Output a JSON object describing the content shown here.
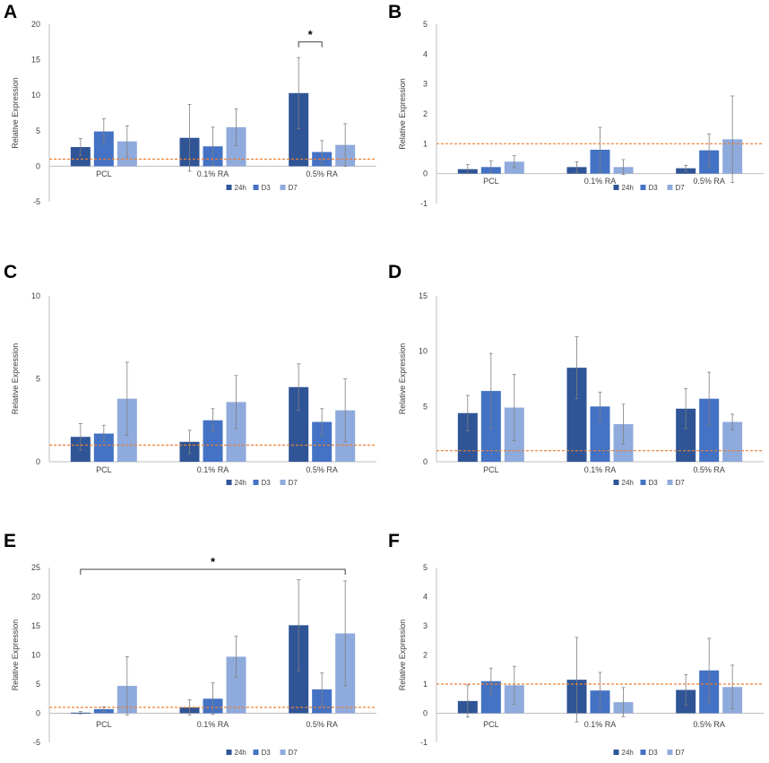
{
  "legend_labels": [
    "24h",
    "D3",
    "D7"
  ],
  "colors": {
    "series": [
      "#2F5597",
      "#4472C4",
      "#8FAADC"
    ],
    "reference_line": "#ED7D31",
    "axis": "#BFBFBF",
    "error_bar": "#7F7F7F",
    "tick_text": "#404040",
    "panel_letter": "#000000"
  },
  "chart_data": [
    {
      "panel": "A",
      "type": "bar",
      "ylabel": "Relative Expression",
      "categories": [
        "PCL",
        "0.1% RA",
        "0.5% RA"
      ],
      "ylim": [
        -5,
        20
      ],
      "yticks": [
        -5,
        0,
        5,
        10,
        15,
        20
      ],
      "reference_line": 1,
      "series": [
        {
          "name": "24h",
          "values": [
            2.7,
            4.0,
            10.3
          ],
          "errors": [
            1.2,
            4.7,
            5.0
          ]
        },
        {
          "name": "D3",
          "values": [
            4.9,
            2.8,
            2.0
          ],
          "errors": [
            1.8,
            2.7,
            1.6
          ]
        },
        {
          "name": "D7",
          "values": [
            3.5,
            5.5,
            3.0
          ],
          "errors": [
            2.2,
            2.6,
            3.0
          ]
        }
      ],
      "significance": [
        {
          "label": "*",
          "from": [
            2,
            0
          ],
          "to": [
            2,
            1
          ],
          "level": 17.5
        }
      ]
    },
    {
      "panel": "B",
      "type": "bar",
      "ylabel": "Relative Expression",
      "categories": [
        "PCL",
        "0.1% RA",
        "0.5% RA"
      ],
      "ylim": [
        -1,
        5
      ],
      "yticks": [
        -1,
        0,
        1,
        2,
        3,
        4,
        5
      ],
      "reference_line": 1,
      "series": [
        {
          "name": "24h",
          "values": [
            0.15,
            0.22,
            0.18
          ],
          "errors": [
            0.15,
            0.18,
            0.1
          ]
        },
        {
          "name": "D3",
          "values": [
            0.22,
            0.8,
            0.78
          ],
          "errors": [
            0.2,
            0.75,
            0.55
          ]
        },
        {
          "name": "D7",
          "values": [
            0.4,
            0.22,
            1.15
          ],
          "errors": [
            0.2,
            0.25,
            1.45
          ]
        }
      ],
      "significance": []
    },
    {
      "panel": "C",
      "type": "bar",
      "ylabel": "Relative Expression",
      "categories": [
        "PCL",
        "0.1% RA",
        "0.5% RA"
      ],
      "ylim": [
        0,
        10
      ],
      "yticks": [
        0,
        5,
        10
      ],
      "reference_line": 1,
      "series": [
        {
          "name": "24h",
          "values": [
            1.5,
            1.2,
            4.5
          ],
          "errors": [
            0.8,
            0.7,
            1.4
          ]
        },
        {
          "name": "D3",
          "values": [
            1.7,
            2.5,
            2.4
          ],
          "errors": [
            0.5,
            0.7,
            0.8
          ]
        },
        {
          "name": "D7",
          "values": [
            3.8,
            3.6,
            3.1
          ],
          "errors": [
            2.2,
            1.6,
            1.9
          ]
        }
      ],
      "significance": []
    },
    {
      "panel": "D",
      "type": "bar",
      "ylabel": "Relative Expression",
      "categories": [
        "PCL",
        "0.1% RA",
        "0.5% RA"
      ],
      "ylim": [
        0,
        15
      ],
      "yticks": [
        0,
        5,
        10,
        15
      ],
      "reference_line": 1,
      "series": [
        {
          "name": "24h",
          "values": [
            4.4,
            8.5,
            4.8
          ],
          "errors": [
            1.6,
            2.8,
            1.8
          ]
        },
        {
          "name": "D3",
          "values": [
            6.4,
            5.0,
            5.7
          ],
          "errors": [
            3.4,
            1.3,
            2.4
          ]
        },
        {
          "name": "D7",
          "values": [
            4.9,
            3.4,
            3.6
          ],
          "errors": [
            3.0,
            1.8,
            0.7
          ]
        }
      ],
      "significance": []
    },
    {
      "panel": "E",
      "type": "bar",
      "ylabel": "Relative Expression",
      "categories": [
        "PCL",
        "0.1% RA",
        "0.5% RA"
      ],
      "ylim": [
        -5,
        25
      ],
      "yticks": [
        -5,
        0,
        5,
        10,
        15,
        20,
        25
      ],
      "reference_line": 1,
      "series": [
        {
          "name": "24h",
          "values": [
            0.1,
            1.0,
            15.1
          ],
          "errors": [
            0.2,
            1.3,
            7.8
          ]
        },
        {
          "name": "D3",
          "values": [
            0.7,
            2.5,
            4.1
          ],
          "errors": [
            0.4,
            2.7,
            2.8
          ]
        },
        {
          "name": "D7",
          "values": [
            4.7,
            9.7,
            13.7
          ],
          "errors": [
            5.0,
            3.5,
            9.0
          ]
        }
      ],
      "significance": [
        {
          "label": "*",
          "from": [
            0,
            0
          ],
          "to": [
            2,
            2
          ],
          "level": 24.7
        }
      ]
    },
    {
      "panel": "F",
      "type": "bar",
      "ylabel": "Relative Expression",
      "categories": [
        "PCL",
        "0.1% RA",
        "0.5% RA"
      ],
      "ylim": [
        -1,
        5
      ],
      "yticks": [
        -1,
        0,
        1,
        2,
        3,
        4,
        5
      ],
      "reference_line": 1,
      "series": [
        {
          "name": "24h",
          "values": [
            0.42,
            1.15,
            0.8
          ],
          "errors": [
            0.55,
            1.45,
            0.52
          ]
        },
        {
          "name": "D3",
          "values": [
            1.1,
            0.78,
            1.47
          ],
          "errors": [
            0.45,
            0.62,
            1.1
          ]
        },
        {
          "name": "D7",
          "values": [
            0.96,
            0.38,
            0.9
          ],
          "errors": [
            0.65,
            0.5,
            0.75
          ]
        }
      ],
      "significance": []
    }
  ]
}
